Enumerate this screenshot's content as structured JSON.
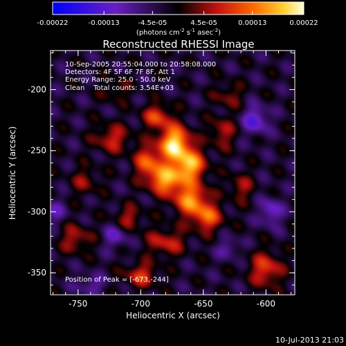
{
  "chart_data": {
    "type": "heatmap",
    "title": "Reconstructed RHESSI Image",
    "xlabel": "Heliocentric X (arcsec)",
    "ylabel": "Heliocentric Y (arcsec)",
    "xlim": [
      -772,
      -577
    ],
    "ylim": [
      -368,
      -168
    ],
    "xticks": [
      -750,
      -700,
      -650,
      -600
    ],
    "yticks": [
      -200,
      -250,
      -300,
      -350
    ],
    "colorbar": {
      "range": [
        -0.00022,
        0.00022
      ],
      "tick_values": [
        -0.00022,
        -0.00013,
        -4.5e-05,
        4.5e-05,
        0.00013,
        0.00022
      ],
      "tick_labels": [
        "-0.00022",
        "-0.00013",
        "-4.5e-05",
        "4.5e-05",
        "0.00013",
        "0.00022"
      ],
      "unit_text": "(photons cm",
      "unit_exp1": "-2",
      "unit_mid1": " s",
      "unit_exp2": "-1",
      "unit_mid2": " asec",
      "unit_exp3": "-2",
      "unit_end": ")"
    },
    "annotations": {
      "time_range": "10-Sep-2005 20:55:04.000 to 20:58:08.000",
      "detectors": "Detectors: 4F 5F 6F 7F 8F, Att 1",
      "energy": "Energy Range: 25.0 - 50.0 keV",
      "clean": "Clean    Total counts: 3.54E+03",
      "peak": "Position of Peak = [-673,-244]"
    },
    "peak": {
      "x": -673,
      "y": -244
    },
    "sources": [
      {
        "x": -673,
        "y": -244,
        "amp": 1.0,
        "sx": 9,
        "sy": 10
      },
      {
        "x": -661,
        "y": -262,
        "amp": 0.85,
        "sx": 9,
        "sy": 9
      },
      {
        "x": -680,
        "y": -274,
        "amp": 0.8,
        "sx": 10,
        "sy": 8
      },
      {
        "x": -660,
        "y": -290,
        "amp": 0.75,
        "sx": 10,
        "sy": 9
      },
      {
        "x": -694,
        "y": -259,
        "amp": 0.6,
        "sx": 8,
        "sy": 9
      },
      {
        "x": -647,
        "y": -305,
        "amp": 0.6,
        "sx": 9,
        "sy": 8
      },
      {
        "x": -687,
        "y": -222,
        "amp": 0.55,
        "sx": 8,
        "sy": 7
      },
      {
        "x": -723,
        "y": -240,
        "amp": 0.45,
        "sx": 10,
        "sy": 8
      },
      {
        "x": -635,
        "y": -235,
        "amp": 0.4,
        "sx": 7,
        "sy": 9
      },
      {
        "x": -680,
        "y": -325,
        "amp": 0.45,
        "sx": 11,
        "sy": 8
      },
      {
        "x": -700,
        "y": -352,
        "amp": 0.5,
        "sx": 9,
        "sy": 7
      },
      {
        "x": -752,
        "y": -322,
        "amp": 0.4,
        "sx": 9,
        "sy": 8
      },
      {
        "x": -600,
        "y": -347,
        "amp": 0.55,
        "sx": 9,
        "sy": 10
      },
      {
        "x": -620,
        "y": -280,
        "amp": 0.35,
        "sx": 7,
        "sy": 8
      },
      {
        "x": -710,
        "y": -305,
        "amp": 0.38,
        "sx": 8,
        "sy": 7
      },
      {
        "x": -745,
        "y": -275,
        "amp": 0.3,
        "sx": 8,
        "sy": 8
      },
      {
        "x": -630,
        "y": -205,
        "amp": 0.3,
        "sx": 8,
        "sy": 7
      },
      {
        "x": -720,
        "y": -200,
        "amp": 0.25,
        "sx": 8,
        "sy": 7
      },
      {
        "x": -608,
        "y": -225,
        "amp": -0.5,
        "sx": 7,
        "sy": 8
      },
      {
        "x": -596,
        "y": -300,
        "amp": -0.45,
        "sx": 6,
        "sy": 8
      },
      {
        "x": -720,
        "y": -320,
        "amp": -0.35,
        "sx": 7,
        "sy": 7
      },
      {
        "x": -770,
        "y": -300,
        "amp": -0.3,
        "sx": 7,
        "sy": 7
      },
      {
        "x": -630,
        "y": -330,
        "amp": -0.3,
        "sx": 6,
        "sy": 6
      },
      {
        "x": -740,
        "y": -360,
        "amp": -0.3,
        "sx": 8,
        "sy": 6
      }
    ]
  },
  "footer": {
    "timestamp": "10-Jul-2013 21:03"
  }
}
